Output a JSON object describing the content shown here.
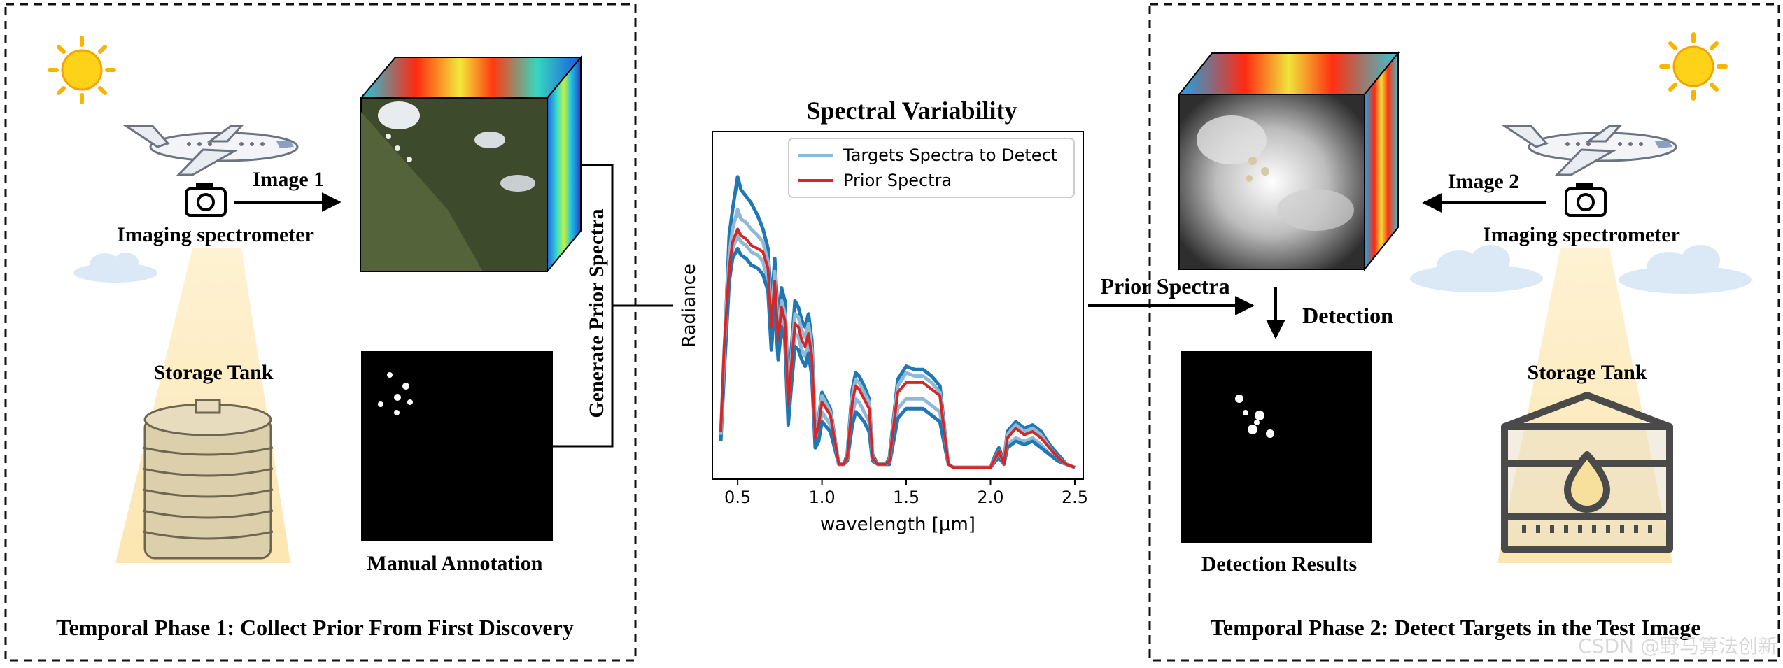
{
  "phase1": {
    "title": "Temporal Phase 1: Collect Prior From First Discovery",
    "image_label": "Image 1",
    "sensor_label": "Imaging spectrometer",
    "target_label": "Storage Tank",
    "annotation_label": "Manual Annotation",
    "generate_label": "Generate Prior Spectra"
  },
  "phase2": {
    "title": "Temporal Phase 2: Detect Targets in the Test Image",
    "image_label": "Image 2",
    "sensor_label": "Imaging spectrometer",
    "target_label": "Storage Tank",
    "prior_label": "Prior Spectra",
    "detection_label": "Detection",
    "results_label": "Detection Results"
  },
  "watermark": "CSDN @野马算法创新",
  "colors": {
    "target_spectra": "#1f77b4",
    "prior_spectra": "#d62728",
    "target_legend": "#8fb9d6"
  },
  "chart_data": {
    "type": "line",
    "title": "Spectral Variability",
    "xlabel": "wavelength [μm]",
    "ylabel": "Radiance",
    "xlim": [
      0.35,
      2.55
    ],
    "ylim": [
      0,
      1
    ],
    "xticks": [
      0.5,
      1.0,
      1.5,
      2.0,
      2.5
    ],
    "xtick_labels": [
      "0.5",
      "1.0",
      "1.5",
      "2.0",
      "2.5"
    ],
    "legend": [
      "Targets Spectra to Detect",
      "Prior Spectra"
    ],
    "legend_position": "top-right",
    "x": [
      0.4,
      0.42,
      0.45,
      0.47,
      0.5,
      0.52,
      0.55,
      0.58,
      0.62,
      0.65,
      0.68,
      0.7,
      0.72,
      0.74,
      0.76,
      0.78,
      0.8,
      0.82,
      0.84,
      0.86,
      0.88,
      0.9,
      0.92,
      0.94,
      0.96,
      0.98,
      1.0,
      1.05,
      1.1,
      1.13,
      1.15,
      1.18,
      1.2,
      1.22,
      1.25,
      1.28,
      1.3,
      1.33,
      1.36,
      1.38,
      1.4,
      1.45,
      1.5,
      1.55,
      1.6,
      1.65,
      1.7,
      1.75,
      1.78,
      1.8,
      1.85,
      1.9,
      1.95,
      2.0,
      2.03,
      2.05,
      2.08,
      2.1,
      2.15,
      2.2,
      2.25,
      2.3,
      2.35,
      2.4,
      2.45,
      2.5
    ],
    "series": [
      {
        "name": "Prior Spectra",
        "role": "prior",
        "values": [
          0.12,
          0.38,
          0.62,
          0.7,
          0.74,
          0.72,
          0.71,
          0.69,
          0.68,
          0.67,
          0.62,
          0.44,
          0.58,
          0.4,
          0.5,
          0.46,
          0.2,
          0.33,
          0.45,
          0.44,
          0.4,
          0.38,
          0.42,
          0.35,
          0.1,
          0.14,
          0.21,
          0.17,
          0.02,
          0.02,
          0.04,
          0.21,
          0.26,
          0.25,
          0.22,
          0.19,
          0.04,
          0.02,
          0.02,
          0.02,
          0.03,
          0.24,
          0.27,
          0.27,
          0.27,
          0.25,
          0.23,
          0.02,
          0.01,
          0.01,
          0.01,
          0.01,
          0.01,
          0.01,
          0.04,
          0.06,
          0.02,
          0.1,
          0.13,
          0.11,
          0.12,
          0.1,
          0.07,
          0.04,
          0.02,
          0.01
        ]
      },
      {
        "name": "Targets Spectra to Detect",
        "role": "target",
        "values": [
          0.1,
          0.35,
          0.72,
          0.8,
          0.9,
          0.86,
          0.84,
          0.82,
          0.78,
          0.74,
          0.68,
          0.5,
          0.65,
          0.46,
          0.56,
          0.52,
          0.24,
          0.38,
          0.52,
          0.5,
          0.46,
          0.44,
          0.48,
          0.4,
          0.12,
          0.16,
          0.24,
          0.19,
          0.02,
          0.02,
          0.05,
          0.25,
          0.3,
          0.29,
          0.26,
          0.22,
          0.05,
          0.02,
          0.02,
          0.02,
          0.04,
          0.28,
          0.32,
          0.31,
          0.31,
          0.29,
          0.26,
          0.02,
          0.01,
          0.01,
          0.01,
          0.01,
          0.01,
          0.01,
          0.05,
          0.07,
          0.03,
          0.12,
          0.15,
          0.13,
          0.14,
          0.12,
          0.08,
          0.05,
          0.02,
          0.01
        ]
      },
      {
        "name": "Targets Spectra to Detect",
        "role": "target",
        "values": [
          0.1,
          0.33,
          0.62,
          0.68,
          0.72,
          0.7,
          0.69,
          0.67,
          0.66,
          0.64,
          0.58,
          0.4,
          0.55,
          0.37,
          0.47,
          0.43,
          0.17,
          0.3,
          0.42,
          0.41,
          0.37,
          0.35,
          0.39,
          0.32,
          0.08,
          0.11,
          0.18,
          0.14,
          0.02,
          0.02,
          0.03,
          0.17,
          0.22,
          0.21,
          0.18,
          0.15,
          0.03,
          0.02,
          0.02,
          0.02,
          0.02,
          0.19,
          0.22,
          0.22,
          0.22,
          0.2,
          0.18,
          0.02,
          0.01,
          0.01,
          0.01,
          0.01,
          0.01,
          0.01,
          0.03,
          0.05,
          0.02,
          0.08,
          0.1,
          0.09,
          0.1,
          0.08,
          0.05,
          0.03,
          0.02,
          0.01
        ]
      },
      {
        "name": "Targets Spectra to Detect",
        "role": "target",
        "values": [
          0.09,
          0.3,
          0.58,
          0.65,
          0.68,
          0.66,
          0.65,
          0.63,
          0.62,
          0.6,
          0.55,
          0.37,
          0.51,
          0.34,
          0.44,
          0.4,
          0.14,
          0.27,
          0.38,
          0.37,
          0.34,
          0.32,
          0.36,
          0.29,
          0.07,
          0.09,
          0.15,
          0.12,
          0.02,
          0.02,
          0.03,
          0.14,
          0.18,
          0.17,
          0.15,
          0.12,
          0.03,
          0.02,
          0.02,
          0.02,
          0.02,
          0.16,
          0.19,
          0.19,
          0.19,
          0.17,
          0.15,
          0.02,
          0.01,
          0.01,
          0.01,
          0.01,
          0.01,
          0.01,
          0.03,
          0.04,
          0.02,
          0.07,
          0.09,
          0.08,
          0.09,
          0.07,
          0.05,
          0.03,
          0.02,
          0.01
        ]
      },
      {
        "name": "Targets Spectra to Detect",
        "role": "target",
        "values": [
          0.11,
          0.37,
          0.66,
          0.74,
          0.8,
          0.77,
          0.76,
          0.74,
          0.72,
          0.7,
          0.64,
          0.46,
          0.61,
          0.42,
          0.52,
          0.48,
          0.21,
          0.35,
          0.48,
          0.47,
          0.43,
          0.41,
          0.45,
          0.37,
          0.11,
          0.15,
          0.23,
          0.18,
          0.02,
          0.02,
          0.04,
          0.23,
          0.28,
          0.27,
          0.24,
          0.21,
          0.04,
          0.02,
          0.02,
          0.02,
          0.03,
          0.26,
          0.3,
          0.29,
          0.29,
          0.27,
          0.24,
          0.02,
          0.01,
          0.01,
          0.01,
          0.01,
          0.01,
          0.01,
          0.04,
          0.06,
          0.02,
          0.11,
          0.14,
          0.12,
          0.13,
          0.11,
          0.07,
          0.04,
          0.02,
          0.01
        ]
      }
    ]
  }
}
